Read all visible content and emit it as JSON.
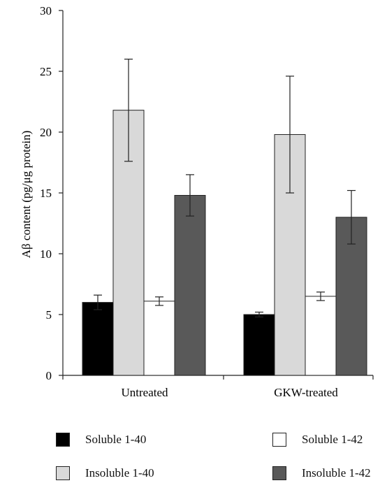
{
  "chart_data": {
    "type": "bar",
    "title": "",
    "xlabel": "",
    "ylabel": "Aβ content (pg/μg protein)",
    "ylim": [
      0,
      30
    ],
    "yticks": [
      0,
      5,
      10,
      15,
      20,
      25,
      30
    ],
    "categories": [
      "Untreated",
      "GKW-treated"
    ],
    "series": [
      {
        "name": "Soluble 1-40",
        "color": "#000000",
        "values": [
          6.0,
          5.0
        ],
        "errors": [
          0.6,
          0.2
        ]
      },
      {
        "name": "Insoluble 1-40",
        "color": "#d9d9d9",
        "values": [
          21.8,
          19.8
        ],
        "errors": [
          4.2,
          4.8
        ]
      },
      {
        "name": "Soluble 1-42",
        "color": "#ffffff",
        "values": [
          6.1,
          6.5
        ],
        "errors": [
          0.35,
          0.35
        ]
      },
      {
        "name": "Insoluble 1-42",
        "color": "#595959",
        "values": [
          14.8,
          13.0
        ],
        "errors": [
          1.7,
          2.2
        ]
      }
    ],
    "legend": "bottom",
    "grid": false
  }
}
